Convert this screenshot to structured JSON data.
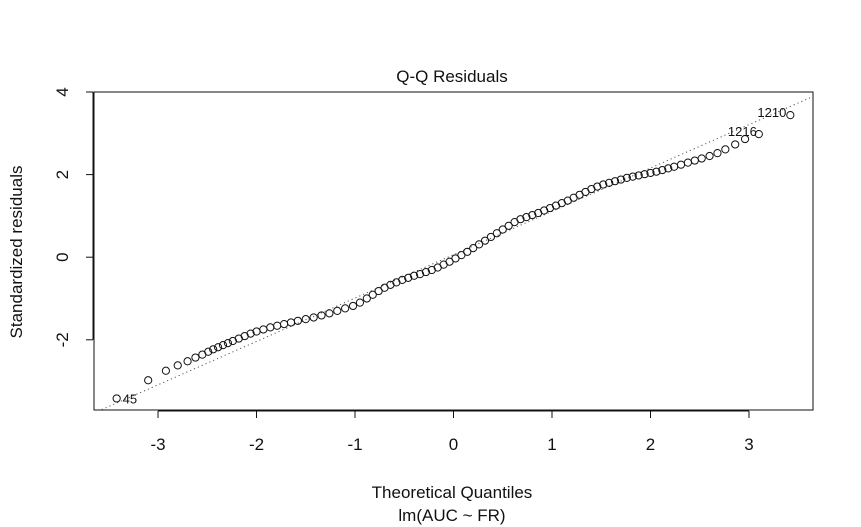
{
  "chart_data": {
    "type": "scatter",
    "title": "Q-Q Residuals",
    "xlabel": "Theoretical Quantiles",
    "xlabel_subtitle": "lm(AUC ~ FR)",
    "ylabel": "Standardized residuals",
    "xlim": [
      -3.65,
      3.65
    ],
    "ylim": [
      -3.7,
      4.0
    ],
    "xticks": [
      -3,
      -2,
      -1,
      0,
      1,
      2,
      3
    ],
    "yticks": [
      -2,
      0,
      2,
      4
    ],
    "reference_line": {
      "style": "dotted",
      "intercept": 0.06,
      "slope": 1.05
    },
    "labeled_points": [
      {
        "label": "45",
        "x": -3.42,
        "y": -3.42
      },
      {
        "label": "1216",
        "x": 3.1,
        "y": 2.98
      },
      {
        "label": "1210",
        "x": 3.42,
        "y": 3.44
      }
    ],
    "points": [
      [
        -3.42,
        -3.42
      ],
      [
        -3.1,
        -2.98
      ],
      [
        -2.92,
        -2.75
      ],
      [
        -2.8,
        -2.62
      ],
      [
        -2.7,
        -2.52
      ],
      [
        -2.62,
        -2.43
      ],
      [
        -2.55,
        -2.36
      ],
      [
        -2.49,
        -2.29
      ],
      [
        -2.44,
        -2.23
      ],
      [
        -2.39,
        -2.18
      ],
      [
        -2.34,
        -2.13
      ],
      [
        -2.29,
        -2.08
      ],
      [
        -2.24,
        -2.03
      ],
      [
        -2.18,
        -1.97
      ],
      [
        -2.12,
        -1.91
      ],
      [
        -2.06,
        -1.85
      ],
      [
        -2.0,
        -1.8
      ],
      [
        -1.93,
        -1.75
      ],
      [
        -1.86,
        -1.7
      ],
      [
        -1.79,
        -1.66
      ],
      [
        -1.72,
        -1.62
      ],
      [
        -1.65,
        -1.58
      ],
      [
        -1.58,
        -1.54
      ],
      [
        -1.5,
        -1.5
      ],
      [
        -1.42,
        -1.46
      ],
      [
        -1.34,
        -1.41
      ],
      [
        -1.26,
        -1.36
      ],
      [
        -1.18,
        -1.3
      ],
      [
        -1.1,
        -1.24
      ],
      [
        -1.02,
        -1.18
      ],
      [
        -0.95,
        -1.1
      ],
      [
        -0.88,
        -1.0
      ],
      [
        -0.82,
        -0.91
      ],
      [
        -0.76,
        -0.82
      ],
      [
        -0.7,
        -0.74
      ],
      [
        -0.64,
        -0.67
      ],
      [
        -0.58,
        -0.61
      ],
      [
        -0.52,
        -0.55
      ],
      [
        -0.46,
        -0.5
      ],
      [
        -0.4,
        -0.45
      ],
      [
        -0.34,
        -0.41
      ],
      [
        -0.28,
        -0.36
      ],
      [
        -0.22,
        -0.31
      ],
      [
        -0.16,
        -0.25
      ],
      [
        -0.1,
        -0.18
      ],
      [
        -0.04,
        -0.11
      ],
      [
        0.02,
        -0.03
      ],
      [
        0.08,
        0.05
      ],
      [
        0.14,
        0.13
      ],
      [
        0.2,
        0.22
      ],
      [
        0.26,
        0.31
      ],
      [
        0.32,
        0.4
      ],
      [
        0.38,
        0.49
      ],
      [
        0.44,
        0.58
      ],
      [
        0.5,
        0.67
      ],
      [
        0.56,
        0.76
      ],
      [
        0.62,
        0.85
      ],
      [
        0.68,
        0.92
      ],
      [
        0.74,
        0.97
      ],
      [
        0.8,
        1.02
      ],
      [
        0.86,
        1.07
      ],
      [
        0.92,
        1.13
      ],
      [
        0.98,
        1.19
      ],
      [
        1.04,
        1.25
      ],
      [
        1.1,
        1.31
      ],
      [
        1.16,
        1.37
      ],
      [
        1.22,
        1.44
      ],
      [
        1.28,
        1.51
      ],
      [
        1.34,
        1.58
      ],
      [
        1.4,
        1.65
      ],
      [
        1.46,
        1.71
      ],
      [
        1.52,
        1.76
      ],
      [
        1.58,
        1.8
      ],
      [
        1.64,
        1.84
      ],
      [
        1.7,
        1.88
      ],
      [
        1.76,
        1.92
      ],
      [
        1.82,
        1.95
      ],
      [
        1.88,
        1.98
      ],
      [
        1.94,
        2.01
      ],
      [
        2.0,
        2.04
      ],
      [
        2.06,
        2.07
      ],
      [
        2.12,
        2.11
      ],
      [
        2.18,
        2.15
      ],
      [
        2.24,
        2.19
      ],
      [
        2.31,
        2.24
      ],
      [
        2.38,
        2.29
      ],
      [
        2.45,
        2.34
      ],
      [
        2.52,
        2.39
      ],
      [
        2.6,
        2.45
      ],
      [
        2.68,
        2.52
      ],
      [
        2.76,
        2.61
      ],
      [
        2.86,
        2.73
      ],
      [
        2.96,
        2.86
      ],
      [
        3.1,
        2.98
      ],
      [
        3.42,
        3.44
      ]
    ]
  }
}
